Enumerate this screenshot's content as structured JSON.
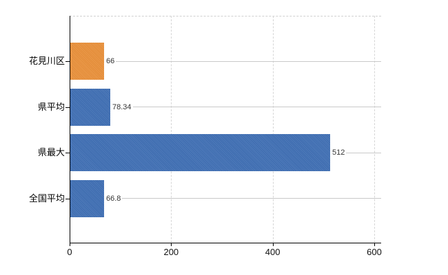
{
  "chart_data": {
    "type": "bar",
    "orientation": "horizontal",
    "title": "",
    "categories": [
      "花見川区",
      "県平均",
      "県最大",
      "全国平均"
    ],
    "values": [
      66,
      78.34,
      512,
      66.8
    ],
    "value_labels": [
      "66",
      "78.34",
      "512",
      "66.8"
    ],
    "bar_colors": [
      "#e98f38",
      "#3d6db3",
      "#3d6db3",
      "#3d6db3"
    ],
    "xlim": [
      0,
      600
    ],
    "x_ticks": [
      0,
      200,
      400,
      600
    ],
    "x_tick_labels": [
      "0",
      "200",
      "400",
      "600"
    ],
    "grid": "vertical-dashed",
    "legend": "none",
    "styles": {
      "axis_color": "#000000",
      "gridline_color": "#d6d6d6",
      "leader_line_color": "#c9c9c9",
      "value_text_color": "#333333",
      "label_text_color": "#000000",
      "background_color": "#ffffff"
    }
  }
}
